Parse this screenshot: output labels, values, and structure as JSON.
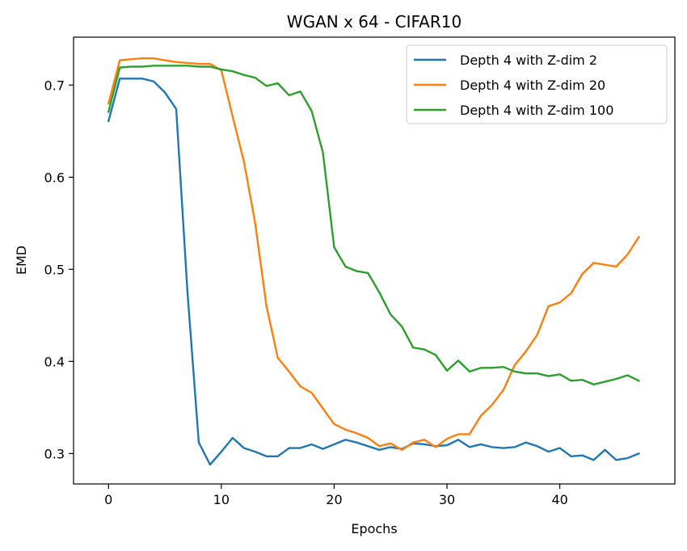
{
  "chart_data": {
    "type": "line",
    "title": "WGAN x 64 - CIFAR10",
    "xlabel": "Epochs",
    "ylabel": "EMD",
    "xlim": [
      -3.1,
      50.2
    ],
    "ylim": [
      0.267,
      0.752
    ],
    "xticks": [
      0,
      10,
      20,
      30,
      40
    ],
    "yticks": [
      0.3,
      0.4,
      0.5,
      0.6,
      0.7
    ],
    "grid": false,
    "legend_position": "top-right",
    "x": [
      0,
      1,
      2,
      3,
      4,
      5,
      6,
      7,
      8,
      9,
      10,
      11,
      12,
      13,
      14,
      15,
      16,
      17,
      18,
      19,
      20,
      21,
      22,
      23,
      24,
      25,
      26,
      27,
      28,
      29,
      30,
      31,
      32,
      33,
      34,
      35,
      36,
      37,
      38,
      39,
      40,
      41,
      42,
      43,
      44,
      45,
      46,
      47
    ],
    "series": [
      {
        "name": "Depth 4 with Z-dim 2",
        "color": "#1f77b4",
        "values": [
          0.661,
          0.707,
          0.707,
          0.707,
          0.704,
          0.692,
          0.674,
          0.475,
          0.312,
          0.288,
          0.302,
          0.317,
          0.306,
          0.302,
          0.297,
          0.297,
          0.306,
          0.306,
          0.31,
          0.305,
          0.31,
          0.315,
          0.312,
          0.308,
          0.304,
          0.307,
          0.305,
          0.311,
          0.31,
          0.308,
          0.309,
          0.315,
          0.307,
          0.31,
          0.307,
          0.306,
          0.307,
          0.312,
          0.308,
          0.302,
          0.306,
          0.297,
          0.298,
          0.293,
          0.304,
          0.293,
          0.295,
          0.3
        ]
      },
      {
        "name": "Depth 4 with Z-dim 20",
        "color": "#ff7f0e",
        "values": [
          0.68,
          0.727,
          0.728,
          0.729,
          0.729,
          0.727,
          0.725,
          0.724,
          0.723,
          0.723,
          0.716,
          0.666,
          0.617,
          0.55,
          0.46,
          0.404,
          0.389,
          0.373,
          0.366,
          0.349,
          0.332,
          0.326,
          0.322,
          0.317,
          0.308,
          0.311,
          0.304,
          0.312,
          0.315,
          0.307,
          0.316,
          0.321,
          0.321,
          0.341,
          0.353,
          0.369,
          0.396,
          0.411,
          0.429,
          0.46,
          0.464,
          0.474,
          0.495,
          0.507,
          0.505,
          0.503,
          0.516,
          0.535
        ]
      },
      {
        "name": "Depth 4 with Z-dim 100",
        "color": "#2ca02c",
        "values": [
          0.671,
          0.719,
          0.72,
          0.72,
          0.721,
          0.721,
          0.721,
          0.721,
          0.72,
          0.72,
          0.717,
          0.715,
          0.711,
          0.708,
          0.699,
          0.702,
          0.689,
          0.693,
          0.672,
          0.627,
          0.524,
          0.503,
          0.498,
          0.496,
          0.475,
          0.451,
          0.438,
          0.415,
          0.413,
          0.407,
          0.39,
          0.401,
          0.389,
          0.393,
          0.393,
          0.394,
          0.389,
          0.387,
          0.387,
          0.384,
          0.386,
          0.379,
          0.38,
          0.375,
          0.378,
          0.381,
          0.385,
          0.379
        ]
      }
    ]
  }
}
